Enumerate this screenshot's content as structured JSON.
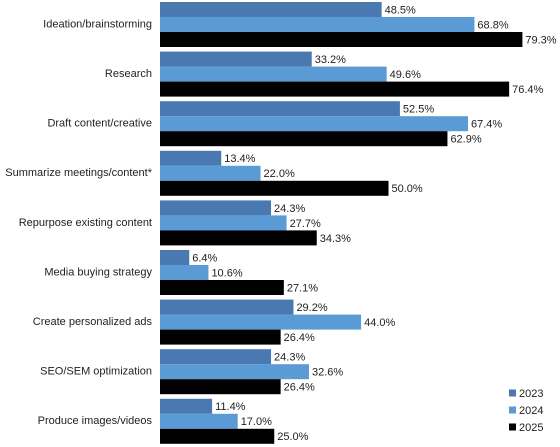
{
  "chart_data": {
    "type": "bar",
    "orientation": "horizontal",
    "legend": "bottom-right",
    "categories": [
      "Ideation/brainstorming",
      "Research",
      "Draft content/creative",
      "Summarize meetings/content*",
      "Repurpose existing content",
      "Media buying strategy",
      "Create personalized ads",
      "SEO/SEM optimization",
      "Produce images/videos"
    ],
    "series": [
      {
        "name": "2023",
        "color": "#4a78b0",
        "values": [
          48.5,
          33.2,
          52.5,
          13.4,
          24.3,
          6.4,
          29.2,
          24.3,
          11.4
        ],
        "value_labels": [
          "48.5%",
          "33.2%",
          "52.5%",
          "13.4%",
          "24.3%",
          "6.4%",
          "29.2%",
          "24.3%",
          "11.4%"
        ]
      },
      {
        "name": "2024",
        "color": "#5b9bd5",
        "values": [
          68.8,
          49.6,
          67.4,
          22.0,
          27.7,
          10.6,
          44.0,
          32.6,
          17.0
        ],
        "value_labels": [
          "68.8%",
          "49.6%",
          "67.4%",
          "22.0%",
          "27.7%",
          "10.6%",
          "44.0%",
          "32.6%",
          "17.0%"
        ]
      },
      {
        "name": "2025",
        "color": "#000000",
        "values": [
          79.3,
          76.4,
          62.9,
          50.0,
          34.3,
          27.1,
          26.4,
          26.4,
          25.0
        ],
        "value_labels": [
          "79.3%",
          "76.4%",
          "62.9%",
          "50.0%",
          "34.3%",
          "27.1%",
          "26.4%",
          "26.4%",
          "25.0%"
        ]
      }
    ]
  }
}
